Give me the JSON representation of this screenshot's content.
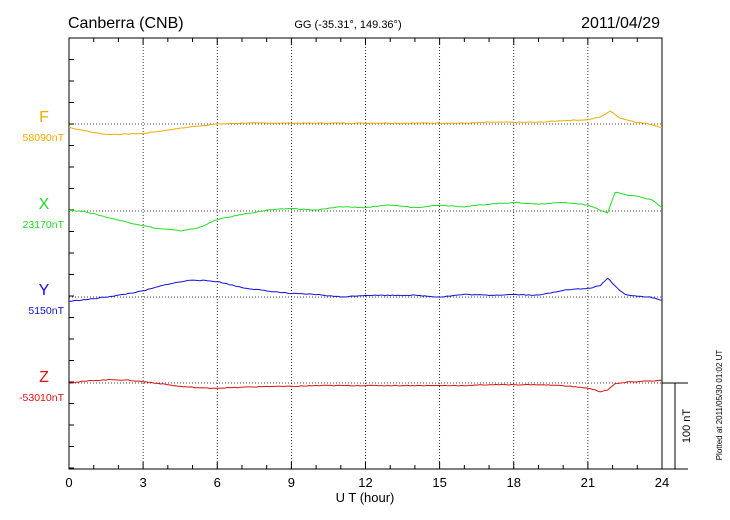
{
  "chart_data": {
    "type": "line",
    "title": "Canberra (CNB)",
    "subtitle": "GG (-35.31°, 149.36°)",
    "date": "2011/04/29",
    "xlabel": "U T (hour)",
    "xlim": [
      0,
      24
    ],
    "xticks": [
      "0",
      "3",
      "6",
      "9",
      "12",
      "15",
      "18",
      "21",
      "24"
    ],
    "grid": true,
    "scale_label": "100 nT",
    "scale_nT": 100,
    "plotted_note": "Plotted at 2011/05/30 01:02 UT",
    "series": [
      {
        "name": "F",
        "baseline_label": "58090nT",
        "baseline_nT": 58090,
        "color": "#f5a800",
        "points": [
          [
            0,
            58086
          ],
          [
            1,
            58080
          ],
          [
            1.5,
            58078
          ],
          [
            2,
            58078
          ],
          [
            3,
            58079
          ],
          [
            4,
            58083
          ],
          [
            5,
            58087
          ],
          [
            6,
            58090
          ],
          [
            7,
            58091
          ],
          [
            8,
            58091
          ],
          [
            9,
            58091
          ],
          [
            10,
            58091
          ],
          [
            11,
            58091
          ],
          [
            12,
            58091
          ],
          [
            13,
            58091
          ],
          [
            14,
            58091
          ],
          [
            15,
            58091
          ],
          [
            16,
            58091
          ],
          [
            17,
            58092
          ],
          [
            18,
            58092
          ],
          [
            19,
            58092
          ],
          [
            20,
            58094
          ],
          [
            21,
            58095
          ],
          [
            21.5,
            58098
          ],
          [
            21.9,
            58105
          ],
          [
            22.3,
            58097
          ],
          [
            22.7,
            58094
          ],
          [
            23,
            58092
          ],
          [
            23.5,
            58090
          ],
          [
            24,
            58086
          ]
        ]
      },
      {
        "name": "X",
        "baseline_label": "23170nT",
        "baseline_nT": 23170,
        "color": "#22dd22",
        "points": [
          [
            0,
            23171
          ],
          [
            0.7,
            23169
          ],
          [
            1.5,
            23163
          ],
          [
            2.5,
            23156
          ],
          [
            3.5,
            23150
          ],
          [
            4.5,
            23147
          ],
          [
            5.2,
            23150
          ],
          [
            6,
            23160
          ],
          [
            7,
            23166
          ],
          [
            8,
            23171
          ],
          [
            9,
            23173
          ],
          [
            10,
            23171
          ],
          [
            11,
            23175
          ],
          [
            12,
            23174
          ],
          [
            13,
            23177
          ],
          [
            14,
            23174
          ],
          [
            15,
            23177
          ],
          [
            16,
            23175
          ],
          [
            17,
            23178
          ],
          [
            18,
            23180
          ],
          [
            19,
            23178
          ],
          [
            20,
            23180
          ],
          [
            21,
            23177
          ],
          [
            21.5,
            23171
          ],
          [
            21.8,
            23168
          ],
          [
            22.1,
            23192
          ],
          [
            22.5,
            23189
          ],
          [
            23,
            23187
          ],
          [
            23.6,
            23183
          ],
          [
            24,
            23174
          ]
        ]
      },
      {
        "name": "Y",
        "baseline_label": "5150nT",
        "baseline_nT": 5150,
        "color": "#1010dd",
        "points": [
          [
            0,
            5145
          ],
          [
            1,
            5148
          ],
          [
            2,
            5152
          ],
          [
            3,
            5157
          ],
          [
            4,
            5165
          ],
          [
            5,
            5170
          ],
          [
            6,
            5168
          ],
          [
            7,
            5161
          ],
          [
            8,
            5157
          ],
          [
            9,
            5154
          ],
          [
            10,
            5153
          ],
          [
            11,
            5150
          ],
          [
            12,
            5152
          ],
          [
            13,
            5152
          ],
          [
            14,
            5152
          ],
          [
            15,
            5150
          ],
          [
            16,
            5153
          ],
          [
            17,
            5152
          ],
          [
            18,
            5153
          ],
          [
            19,
            5152
          ],
          [
            20,
            5158
          ],
          [
            21,
            5160
          ],
          [
            21.5,
            5163
          ],
          [
            21.8,
            5172
          ],
          [
            22.2,
            5160
          ],
          [
            22.5,
            5153
          ],
          [
            23,
            5151
          ],
          [
            23.5,
            5150
          ],
          [
            24,
            5146
          ]
        ]
      },
      {
        "name": "Z",
        "baseline_label": "-53010nT",
        "baseline_nT": -53010,
        "color": "#dd1111",
        "points": [
          [
            0,
            -53010
          ],
          [
            1,
            -53007
          ],
          [
            1.8,
            -53006
          ],
          [
            2.5,
            -53007
          ],
          [
            3.5,
            -53010
          ],
          [
            4.5,
            -53014
          ],
          [
            5.5,
            -53016
          ],
          [
            6,
            -53016
          ],
          [
            7,
            -53015
          ],
          [
            8,
            -53014
          ],
          [
            9,
            -53014
          ],
          [
            10,
            -53013
          ],
          [
            11,
            -53013
          ],
          [
            12,
            -53013
          ],
          [
            13,
            -53013
          ],
          [
            14,
            -53013
          ],
          [
            15,
            -53013
          ],
          [
            16,
            -53013
          ],
          [
            17,
            -53012
          ],
          [
            18,
            -53012
          ],
          [
            19,
            -53012
          ],
          [
            20,
            -53013
          ],
          [
            21,
            -53016
          ],
          [
            21.5,
            -53020
          ],
          [
            21.8,
            -53018
          ],
          [
            22.1,
            -53011
          ],
          [
            22.6,
            -53009
          ],
          [
            23.2,
            -53008
          ],
          [
            24,
            -53007
          ]
        ]
      }
    ]
  }
}
